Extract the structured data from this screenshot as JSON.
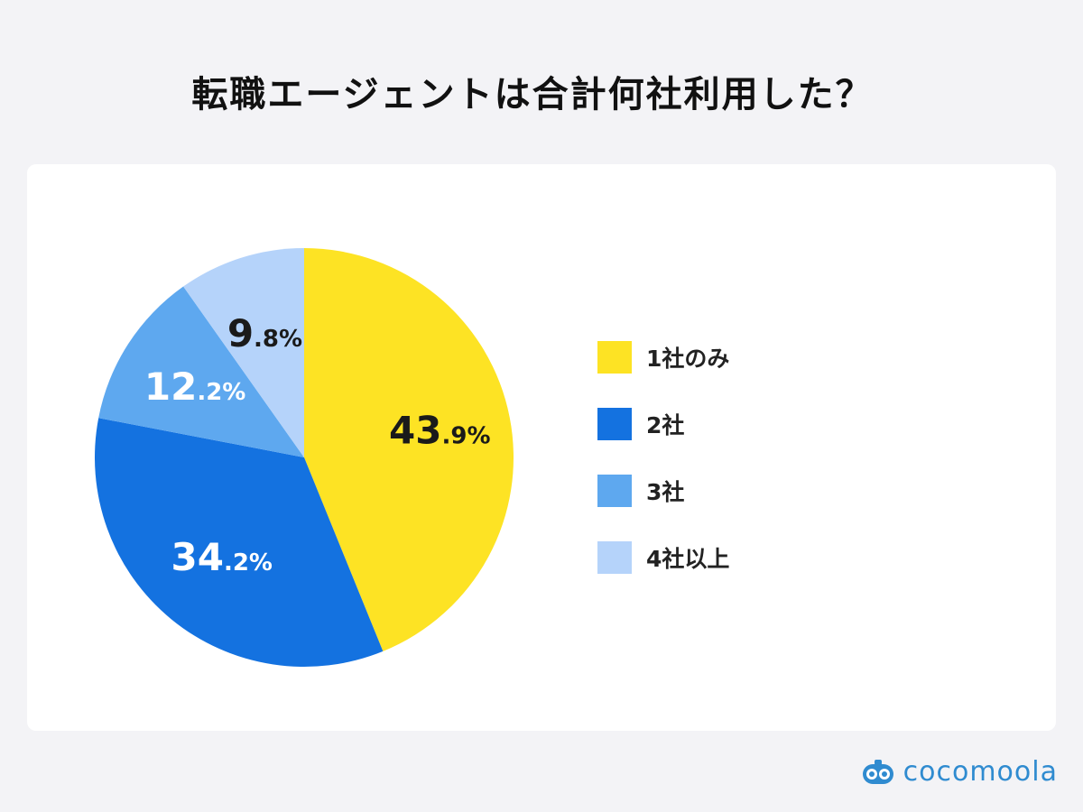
{
  "title": "転職エージェントは合計何社利用した？",
  "brand": {
    "name": "cocomoola",
    "color": "#2f8bd0"
  },
  "chart_data": {
    "type": "pie",
    "title": "転職エージェントは合計何社利用した？",
    "labels": [
      "1社のみ",
      "2社",
      "3社",
      "4社以上"
    ],
    "values": [
      43.9,
      34.2,
      12.2,
      9.8
    ],
    "value_labels": [
      {
        "main": "43",
        "dec": ".9%"
      },
      {
        "main": "34",
        "dec": ".2%"
      },
      {
        "main": "12",
        "dec": ".2%"
      },
      {
        "main": "9",
        "dec": ".8%"
      }
    ],
    "colors": [
      "#fde324",
      "#1472e0",
      "#5ea8ef",
      "#b5d3fa"
    ],
    "label_colors": [
      "#1a1a1a",
      "#ffffff",
      "#ffffff",
      "#1a1a1a"
    ],
    "start": "12 o'clock",
    "direction": "clockwise",
    "legend_position": "right"
  }
}
